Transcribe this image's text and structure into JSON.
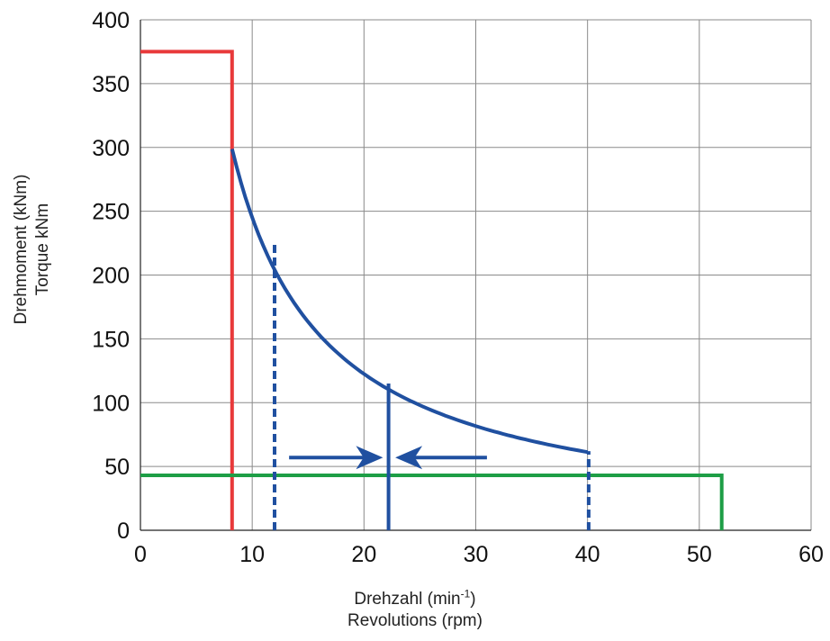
{
  "chart_data": {
    "type": "line",
    "xlabel": "Drehzahl (min",
    "xlabel_sup": "-1",
    "xlabel_tail": ")",
    "xlabel2": "Revolutions (rpm)",
    "ylabel": "Drehmoment (kNm)",
    "ylabel2": "Torque kNm",
    "xlim": [
      0,
      60
    ],
    "ylim": [
      0,
      400
    ],
    "xticks": [
      0,
      10,
      20,
      30,
      40,
      50,
      60
    ],
    "yticks": [
      0,
      50,
      100,
      150,
      200,
      250,
      300,
      350,
      400
    ],
    "grid": true,
    "series": [
      {
        "id": "red-limit",
        "color": "#e8393a",
        "style": "solid",
        "points": [
          [
            0,
            375
          ],
          [
            8.2,
            375
          ],
          [
            8.2,
            0
          ]
        ]
      },
      {
        "id": "green-limit",
        "color": "#1e9e46",
        "style": "solid",
        "points": [
          [
            0,
            43
          ],
          [
            52,
            43
          ],
          [
            52,
            0
          ]
        ]
      },
      {
        "id": "power-curve",
        "color": "#2050a0",
        "style": "solid",
        "hyperbola_constant": 2450,
        "x_from": 8.2,
        "x_to": 40
      },
      {
        "id": "left-dashed",
        "color": "#2050a0",
        "style": "dashed",
        "points": [
          [
            12,
            0
          ],
          [
            12,
            226
          ]
        ]
      },
      {
        "id": "center-line",
        "color": "#2050a0",
        "style": "solid",
        "points": [
          [
            22.2,
            0
          ],
          [
            22.2,
            115
          ]
        ]
      },
      {
        "id": "right-dashed",
        "color": "#2050a0",
        "style": "dashed",
        "points": [
          [
            40.1,
            0
          ],
          [
            40.1,
            62
          ]
        ]
      }
    ],
    "arrows": [
      {
        "id": "arrow-right",
        "color": "#2050a0",
        "from": [
          13.3,
          57
        ],
        "to": [
          21.7,
          57
        ]
      },
      {
        "id": "arrow-left",
        "color": "#2050a0",
        "from": [
          31,
          57
        ],
        "to": [
          22.8,
          57
        ]
      }
    ]
  }
}
